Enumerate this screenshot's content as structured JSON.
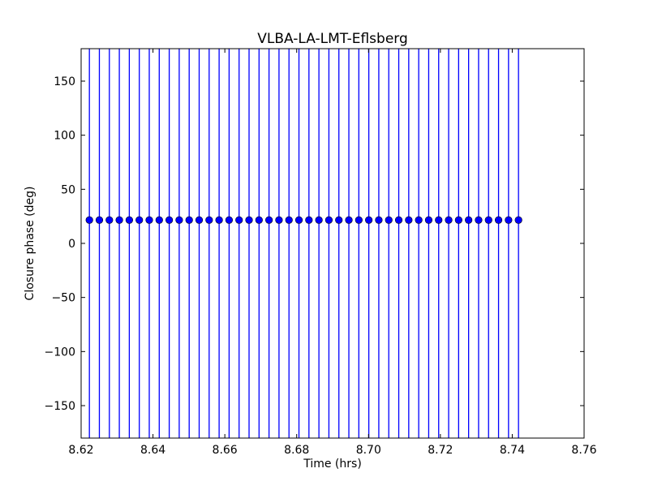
{
  "chart_data": {
    "type": "scatter",
    "title": "VLBA-LA-LMT-Eflsberg",
    "xlabel": "Time (hrs)",
    "ylabel": "Closure phase (deg)",
    "xlim": [
      8.62,
      8.76
    ],
    "ylim": [
      -180,
      180
    ],
    "xticks": [
      "8.62",
      "8.64",
      "8.66",
      "8.68",
      "8.70",
      "8.72",
      "8.74",
      "8.76"
    ],
    "yticks": [
      "−150",
      "−100",
      "−50",
      "0",
      "50",
      "100",
      "150"
    ],
    "ytick_values": [
      -150,
      -100,
      -50,
      0,
      50,
      100,
      150
    ],
    "xtick_values": [
      8.62,
      8.64,
      8.66,
      8.68,
      8.7,
      8.72,
      8.74,
      8.76
    ],
    "grid": false,
    "series": [
      {
        "name": "closure phase",
        "color": "#0000ff",
        "x_start": 8.6223,
        "x_step": 0.0027778,
        "count": 44,
        "y": 21.6,
        "yerr": 250
      }
    ]
  }
}
